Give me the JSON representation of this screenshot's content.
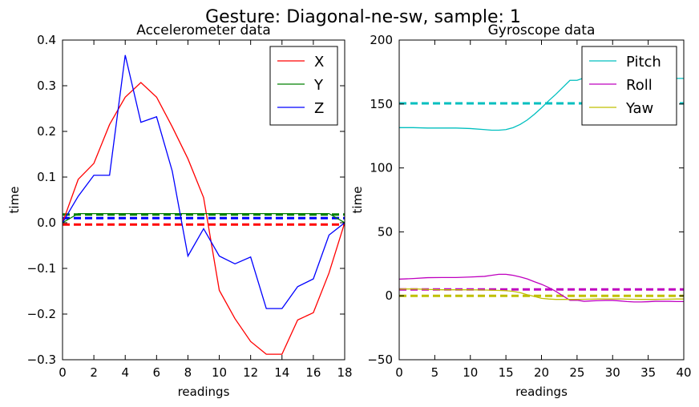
{
  "figure": {
    "suptitle": "Gesture: Diagonal-ne-sw, sample: 1"
  },
  "chart_data": [
    {
      "type": "line",
      "title": "Accelerometer data",
      "xlabel": "readings",
      "ylabel": "time",
      "xlim": [
        0,
        18
      ],
      "ylim": [
        -0.3,
        0.4
      ],
      "xticks": [
        "0",
        "2",
        "4",
        "6",
        "8",
        "10",
        "12",
        "14",
        "16",
        "18"
      ],
      "yticks": [
        "−0.3",
        "−0.2",
        "−0.1",
        "0.0",
        "0.1",
        "0.2",
        "0.3",
        "0.4"
      ],
      "legend_position": "top-right",
      "grid": false,
      "series": [
        {
          "name": "X",
          "color": "#ff0000",
          "x": [
            0,
            1,
            2,
            3,
            4,
            5,
            6,
            7,
            8,
            9,
            10,
            11,
            12,
            13,
            14,
            15,
            16,
            17,
            18
          ],
          "y": [
            0.0,
            0.095,
            0.13,
            0.215,
            0.275,
            0.307,
            0.275,
            0.21,
            0.14,
            0.055,
            -0.148,
            -0.21,
            -0.26,
            -0.288,
            -0.288,
            -0.213,
            -0.197,
            -0.11,
            0.0
          ]
        },
        {
          "name": "Y",
          "color": "#008000",
          "x": [
            0,
            1,
            2,
            3,
            4,
            5,
            6,
            7,
            8,
            9,
            10,
            11,
            12,
            13,
            14,
            15,
            16,
            17,
            18
          ],
          "y": [
            0.0,
            0.02,
            0.02,
            0.02,
            0.02,
            0.02,
            0.02,
            0.02,
            0.02,
            0.02,
            0.02,
            0.02,
            0.02,
            0.02,
            0.02,
            0.02,
            0.02,
            0.02,
            0.0
          ]
        },
        {
          "name": "Z",
          "color": "#0000ff",
          "x": [
            0,
            1,
            2,
            3,
            4,
            5,
            6,
            7,
            8,
            9,
            10,
            11,
            12,
            13,
            14,
            15,
            16,
            17,
            18
          ],
          "y": [
            0.0,
            0.058,
            0.104,
            0.104,
            0.367,
            0.22,
            0.232,
            0.113,
            -0.073,
            -0.013,
            -0.073,
            -0.09,
            -0.075,
            -0.188,
            -0.188,
            -0.14,
            -0.123,
            -0.027,
            0.0
          ]
        }
      ],
      "reference_lines": [
        {
          "color": "#ff0000",
          "y": -0.004
        },
        {
          "color": "#008000",
          "y": 0.018
        },
        {
          "color": "#0000ff",
          "y": 0.01
        }
      ]
    },
    {
      "type": "line",
      "title": "Gyroscope data",
      "xlabel": "readings",
      "ylabel": "time",
      "xlim": [
        0,
        40
      ],
      "ylim": [
        -50,
        200
      ],
      "xticks": [
        "0",
        "5",
        "10",
        "15",
        "20",
        "25",
        "30",
        "35",
        "40"
      ],
      "yticks": [
        "−50",
        "0",
        "50",
        "100",
        "150",
        "200"
      ],
      "legend_position": "top-right",
      "grid": false,
      "series": [
        {
          "name": "Pitch",
          "color": "#00bfbf",
          "x": [
            0,
            2,
            4,
            6,
            8,
            10,
            12,
            13,
            14,
            15,
            16,
            17,
            18,
            19,
            20,
            21,
            22,
            23,
            24,
            25,
            26,
            27,
            28,
            29,
            30,
            31,
            32,
            33,
            34,
            35,
            36,
            37,
            38,
            39,
            40
          ],
          "y": [
            131.5,
            131.5,
            131.2,
            131.2,
            131.2,
            130.8,
            130,
            129.5,
            129.5,
            130,
            131.5,
            134,
            137.5,
            142,
            147,
            152.5,
            157.5,
            163,
            168.5,
            168.5,
            170.5,
            171,
            171,
            171,
            171,
            171,
            171,
            171,
            171,
            171,
            171,
            171,
            171,
            170,
            170
          ]
        },
        {
          "name": "Roll",
          "color": "#bf00bf",
          "x": [
            0,
            2,
            4,
            6,
            8,
            10,
            12,
            13,
            14,
            15,
            16,
            17,
            18,
            19,
            20,
            21,
            22,
            23,
            24,
            25,
            26,
            27,
            28,
            29,
            30,
            31,
            32,
            33,
            34,
            35,
            36,
            37,
            38,
            39,
            40
          ],
          "y": [
            13,
            13.5,
            14.2,
            14.3,
            14.3,
            14.7,
            15.2,
            16,
            16.8,
            16.8,
            16,
            14.8,
            13.2,
            11,
            9,
            6.5,
            3.5,
            0,
            -3.5,
            -3.5,
            -4.3,
            -4,
            -3.8,
            -3.6,
            -3.6,
            -4,
            -4.5,
            -4.8,
            -4.8,
            -4.6,
            -4.3,
            -4.3,
            -4.3,
            -4.5,
            -4.5
          ]
        },
        {
          "name": "Yaw",
          "color": "#bfbf00",
          "x": [
            0,
            2,
            4,
            6,
            8,
            10,
            12,
            13,
            14,
            15,
            16,
            17,
            18,
            19,
            20,
            21,
            22,
            23,
            24,
            25,
            26,
            27,
            28,
            29,
            30,
            31,
            32,
            33,
            34,
            35,
            36,
            37,
            38,
            39,
            40
          ],
          "y": [
            5.2,
            5.4,
            5,
            4.7,
            4.7,
            4.7,
            4.5,
            4.4,
            4.2,
            4,
            3.5,
            2.5,
            0.8,
            -0.5,
            -2,
            -2.5,
            -2.8,
            -2.8,
            -2.8,
            -2.8,
            -2.7,
            -2.6,
            -2.5,
            -2.5,
            -2.5,
            -2.5,
            -2.6,
            -2.7,
            -2.8,
            -2.8,
            -2.8,
            -2.7,
            -2.6,
            -2.5,
            -2.5
          ]
        }
      ],
      "reference_lines": [
        {
          "color": "#00bfbf",
          "y": 150.5
        },
        {
          "color": "#bf00bf",
          "y": 5
        },
        {
          "color": "#bfbf00",
          "y": 0
        }
      ]
    }
  ]
}
